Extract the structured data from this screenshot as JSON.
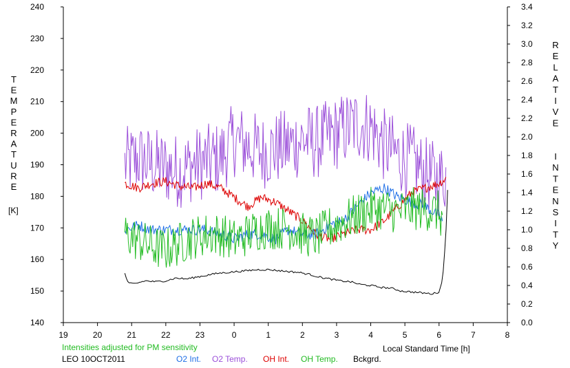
{
  "labels": {
    "left_axis_title": "TEMPERATURE",
    "left_axis_unit": "[K]",
    "right_axis_title": "RELATIVE  INTENSITY",
    "x_axis_title": "Local Standard Time [h]",
    "note": "Intensities adjusted for PM sensitivity",
    "station": "LEO 10OCT2011"
  },
  "colors": {
    "O2 Int.": "#1e6ee6",
    "O2 Temp.": "#9b4fd9",
    "OH Int.": "#dd0000",
    "OH Temp.": "#22bb22",
    "Bckgrd.": "#000000"
  },
  "chart_data": {
    "type": "line",
    "x_ticks": [
      "19",
      "20",
      "21",
      "22",
      "23",
      "0",
      "1",
      "2",
      "3",
      "4",
      "5",
      "6",
      "7",
      "8"
    ],
    "xlim": [
      19,
      32
    ],
    "y_left": {
      "ticks": [
        "240",
        "230",
        "220",
        "210",
        "200",
        "190",
        "180",
        "170",
        "160",
        "150",
        "140"
      ],
      "ylim": [
        140,
        240
      ]
    },
    "y_right": {
      "ticks": [
        "3.4",
        "3.2",
        "3.0",
        "2.8",
        "2.6",
        "2.4",
        "2.2",
        "2.0",
        "1.8",
        "1.6",
        "1.4",
        "1.2",
        "1.0",
        "0.8",
        "0.6",
        "0.4",
        "0.2",
        "0.0"
      ],
      "ylim": [
        0,
        3.4
      ]
    },
    "grid": false,
    "legend": "bottom",
    "series": [
      {
        "name": "O2 Temp.",
        "axis": "left",
        "x": [
          20.8,
          21.2,
          21.6,
          22.0,
          22.4,
          22.8,
          23.2,
          23.6,
          24.0,
          24.4,
          24.8,
          25.2,
          25.6,
          26.0,
          26.4,
          26.8,
          27.2,
          27.6,
          28.0,
          28.4,
          28.8,
          29.2,
          29.6,
          30.0,
          30.2
        ],
        "values": [
          190,
          192,
          190,
          189,
          188,
          190,
          191,
          192,
          198,
          196,
          194,
          195,
          196,
          198,
          197,
          199,
          201,
          203,
          202,
          196,
          193,
          191,
          187,
          185,
          187
        ],
        "amplitude": 12
      },
      {
        "name": "OH Int.",
        "axis": "right",
        "x": [
          20.8,
          21.2,
          21.6,
          22.0,
          22.4,
          22.8,
          23.2,
          23.6,
          24.0,
          24.4,
          24.8,
          25.2,
          25.6,
          26.0,
          26.4,
          26.8,
          27.2,
          27.6,
          28.0,
          28.4,
          28.8,
          29.2,
          29.6,
          30.0,
          30.2
        ],
        "values": [
          1.5,
          1.45,
          1.5,
          1.52,
          1.47,
          1.45,
          1.5,
          1.45,
          1.35,
          1.25,
          1.35,
          1.3,
          1.2,
          1.1,
          0.95,
          0.9,
          0.95,
          1.0,
          1.0,
          1.1,
          1.25,
          1.4,
          1.45,
          1.5,
          1.55
        ],
        "amplitude": 0.05
      },
      {
        "name": "O2 Int.",
        "axis": "right",
        "x": [
          20.8,
          21.2,
          21.6,
          22.0,
          22.4,
          22.8,
          23.2,
          23.6,
          24.0,
          24.4,
          24.8,
          25.2,
          25.6,
          26.0,
          26.4,
          26.8,
          27.2,
          27.6,
          28.0,
          28.4,
          28.8,
          29.2,
          29.6,
          30.0,
          30.1
        ],
        "values": [
          1.0,
          1.05,
          1.0,
          1.0,
          1.0,
          1.0,
          1.0,
          0.95,
          0.9,
          0.95,
          0.95,
          0.9,
          1.0,
          0.95,
          0.95,
          1.05,
          1.1,
          1.25,
          1.4,
          1.45,
          1.35,
          1.3,
          1.25,
          1.15,
          1.1
        ],
        "amplitude": 0.06
      },
      {
        "name": "OH Temp.",
        "axis": "left",
        "x": [
          20.8,
          21.2,
          21.6,
          22.0,
          22.4,
          22.8,
          23.2,
          23.6,
          24.0,
          24.4,
          24.8,
          25.2,
          25.6,
          26.0,
          26.4,
          26.8,
          27.2,
          27.6,
          28.0,
          28.4,
          28.8,
          29.2,
          29.6,
          30.0,
          30.1
        ],
        "values": [
          168,
          166,
          164,
          163,
          165,
          167,
          168,
          168,
          166,
          168,
          170,
          170,
          170,
          168,
          167,
          170,
          172,
          174,
          176,
          176,
          175,
          176,
          176,
          175,
          172
        ],
        "amplitude": 7
      },
      {
        "name": "Bckgrd.",
        "axis": "right",
        "x": [
          20.8,
          20.9,
          21.1,
          21.4,
          21.7,
          22.0,
          22.3,
          22.6,
          22.9,
          23.2,
          23.5,
          23.8,
          24.1,
          24.4,
          24.7,
          25.0,
          25.3,
          25.6,
          25.9,
          26.2,
          26.5,
          26.8,
          27.1,
          27.4,
          27.7,
          28.0,
          28.3,
          28.6,
          28.9,
          29.2,
          29.5,
          29.8,
          30.0,
          30.1,
          30.2,
          30.25
        ],
        "values": [
          0.53,
          0.42,
          0.42,
          0.45,
          0.44,
          0.45,
          0.48,
          0.47,
          0.49,
          0.51,
          0.53,
          0.54,
          0.55,
          0.56,
          0.57,
          0.57,
          0.56,
          0.55,
          0.54,
          0.52,
          0.49,
          0.47,
          0.45,
          0.44,
          0.41,
          0.4,
          0.38,
          0.37,
          0.34,
          0.33,
          0.32,
          0.31,
          0.33,
          0.45,
          0.95,
          1.42
        ],
        "amplitude": 0.01
      }
    ]
  }
}
